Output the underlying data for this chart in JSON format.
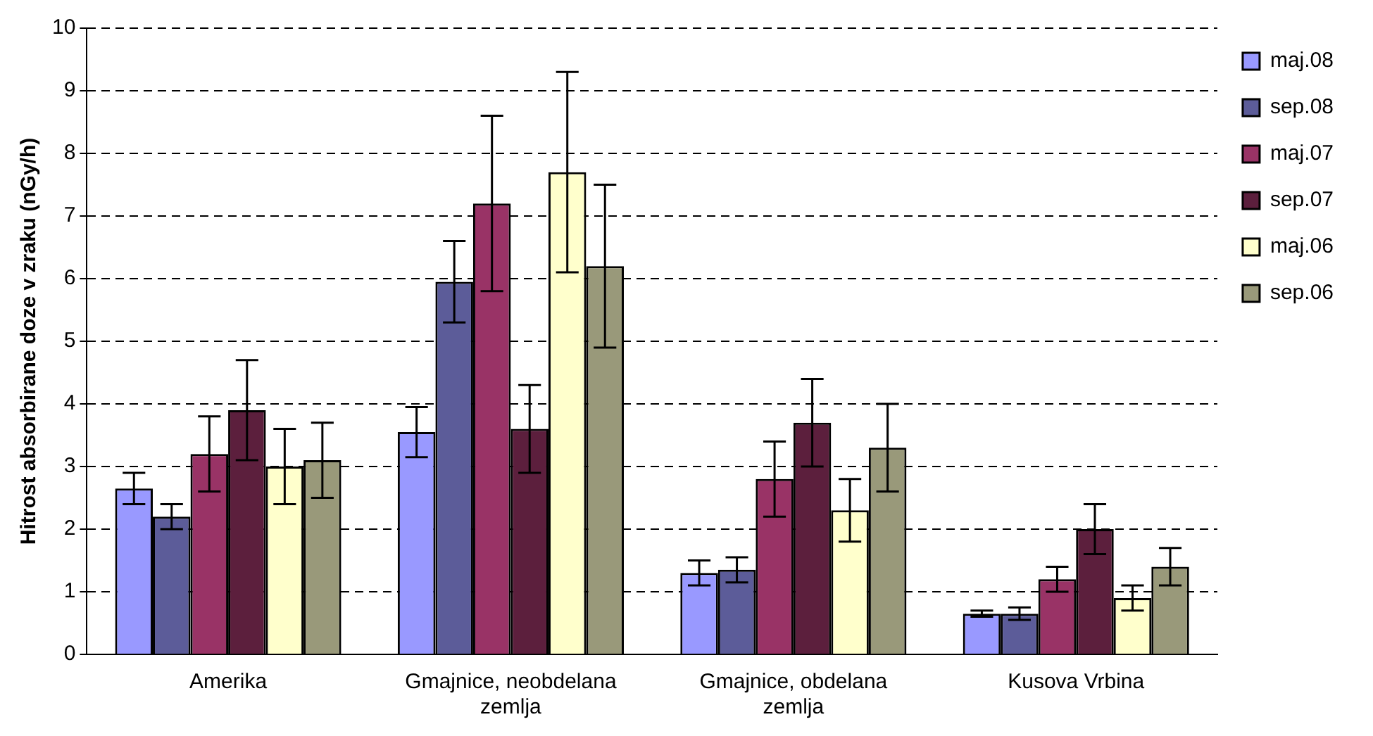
{
  "chart_data": {
    "type": "bar",
    "ylabel": "Hitrost absorbirane doze v zraku (nGy/h)",
    "categories": [
      "Amerika",
      "Gmajnice, neobdelana zemlja",
      "Gmajnice, obdelana zemlja",
      "Kusova Vrbina"
    ],
    "series": [
      {
        "name": "maj.08",
        "color": "#9999ff",
        "values": [
          2.65,
          3.55,
          1.3,
          0.65
        ],
        "errors": [
          0.25,
          0.4,
          0.2,
          0.05
        ]
      },
      {
        "name": "sep.08",
        "color": "#5c5c99",
        "values": [
          2.2,
          5.95,
          1.35,
          0.65
        ],
        "errors": [
          0.2,
          0.65,
          0.2,
          0.1
        ]
      },
      {
        "name": "maj.07",
        "color": "#993366",
        "values": [
          3.2,
          7.2,
          2.8,
          1.2
        ],
        "errors": [
          0.6,
          1.4,
          0.6,
          0.2
        ]
      },
      {
        "name": "sep.07",
        "color": "#5c1f3d",
        "values": [
          3.9,
          3.6,
          3.7,
          2.0
        ],
        "errors": [
          0.8,
          0.7,
          0.7,
          0.4
        ]
      },
      {
        "name": "maj.06",
        "color": "#ffffcc",
        "values": [
          3.0,
          7.7,
          2.3,
          0.9
        ],
        "errors": [
          0.6,
          1.6,
          0.5,
          0.2
        ]
      },
      {
        "name": "sep.06",
        "color": "#99997a",
        "values": [
          3.1,
          6.2,
          3.3,
          1.4
        ],
        "errors": [
          0.6,
          1.3,
          0.7,
          0.3
        ]
      }
    ],
    "ylim": [
      0,
      10
    ],
    "yticks": [
      0,
      1,
      2,
      3,
      4,
      5,
      6,
      7,
      8,
      9,
      10
    ],
    "grid": "y",
    "legend": "top right"
  }
}
